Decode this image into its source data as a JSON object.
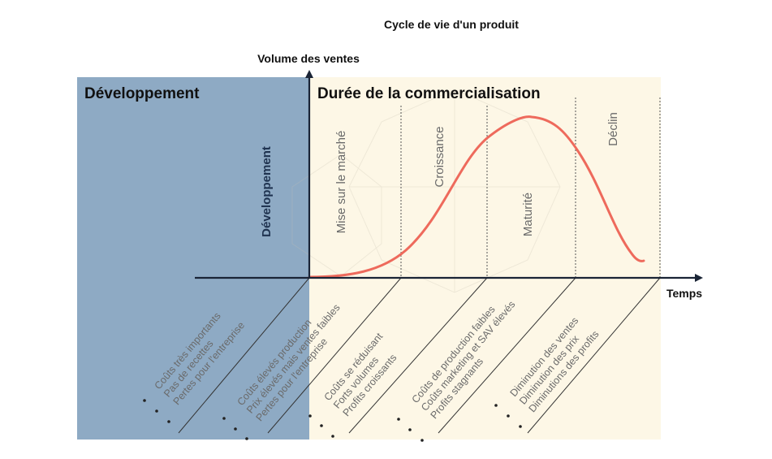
{
  "title": "Cycle de vie d'un produit",
  "axes": {
    "y_label": "Volume des ventes",
    "x_label": "Temps"
  },
  "zones": {
    "development_header": "Développement",
    "commercial_header": "Durée de la commercialisation"
  },
  "phases": [
    {
      "id": "developpement",
      "label": "Développement"
    },
    {
      "id": "mise-sur-le-marche",
      "label": "Mise sur le marché"
    },
    {
      "id": "croissance",
      "label": "Croissance"
    },
    {
      "id": "maturite",
      "label": "Maturité"
    },
    {
      "id": "declin",
      "label": "Déclin"
    }
  ],
  "characteristics": [
    {
      "phase": "developpement",
      "items": [
        "Coûts très importants",
        "Pas de recettes",
        "Pertes pour l'entreprise"
      ]
    },
    {
      "phase": "mise-sur-le-marche",
      "items": [
        "Coûts élevés production",
        "Prix élevés mais ventes faibles",
        "Pertes pour l'entreprise"
      ]
    },
    {
      "phase": "croissance",
      "items": [
        "Coûts se réduisant",
        "Forts volumes",
        "Profits croissants"
      ]
    },
    {
      "phase": "maturite",
      "items": [
        "Coûts de production faibles",
        "Coûts marketing et SAV élevés",
        "Profits stagnants"
      ]
    },
    {
      "phase": "declin",
      "items": [
        "Diminution des ventes",
        "Diminution des prix",
        "Diminutions des profits"
      ]
    }
  ],
  "colors": {
    "development_bg": "#8eaac4",
    "commercial_bg": "#fdf7e6",
    "curve": "#ee6a5c",
    "axis": "#1a2436",
    "divider": "#555555",
    "phase_text": "#6a6a6a",
    "dev_text": "#1f3350"
  }
}
